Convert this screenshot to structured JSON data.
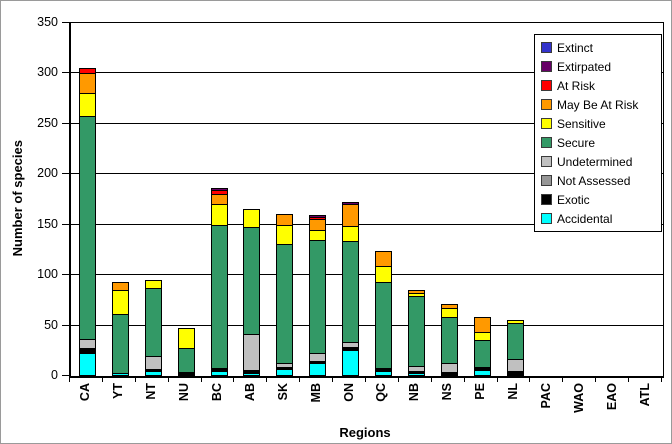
{
  "chart_data": {
    "type": "bar",
    "stacked": true,
    "title": "",
    "xlabel": "Regions",
    "ylabel": "Number of species",
    "ylim": [
      0,
      350
    ],
    "ytick_step": 50,
    "grid": true,
    "legend_position": "top-right",
    "categories": [
      "CA",
      "YT",
      "NT",
      "NU",
      "BC",
      "AB",
      "SK",
      "MB",
      "ON",
      "QC",
      "NB",
      "NS",
      "PE",
      "NL",
      "PAC",
      "WAO",
      "EAO",
      "ATL"
    ],
    "stack_order": "first series is top of stack",
    "series": [
      {
        "name": "Extinct",
        "color": "#3333CC",
        "values": [
          0,
          0,
          0,
          0,
          0,
          0,
          0,
          0,
          0,
          0,
          0,
          0,
          0,
          0,
          0,
          0,
          0,
          0
        ]
      },
      {
        "name": "Extirpated",
        "color": "#660066",
        "values": [
          0,
          0,
          0,
          0,
          2,
          0,
          0,
          2,
          2,
          0,
          0,
          0,
          0,
          0,
          0,
          0,
          0,
          0
        ]
      },
      {
        "name": "At Risk",
        "color": "#FF0000",
        "values": [
          5,
          0,
          0,
          0,
          4,
          0,
          0,
          2,
          0,
          0,
          0,
          0,
          0,
          0,
          0,
          0,
          0,
          0
        ]
      },
      {
        "name": "May Be At Risk",
        "color": "#FF9900",
        "values": [
          19,
          8,
          0,
          0,
          9,
          0,
          11,
          11,
          22,
          15,
          3,
          4,
          15,
          0,
          0,
          0,
          0,
          0
        ]
      },
      {
        "name": "Sensitive",
        "color": "#FFFF00",
        "values": [
          23,
          24,
          8,
          20,
          21,
          18,
          19,
          10,
          15,
          16,
          3,
          8,
          8,
          3,
          0,
          0,
          0,
          0
        ]
      },
      {
        "name": "Secure",
        "color": "#339966",
        "values": [
          221,
          58,
          67,
          24,
          142,
          106,
          118,
          112,
          100,
          85,
          69,
          46,
          27,
          36,
          0,
          0,
          0,
          0
        ]
      },
      {
        "name": "Undetermined",
        "color": "#C0C0C0",
        "values": [
          9,
          0,
          13,
          0,
          0,
          36,
          4,
          8,
          5,
          0,
          5,
          9,
          0,
          12,
          0,
          0,
          0,
          0
        ]
      },
      {
        "name": "Not Assessed",
        "color": "#969696",
        "values": [
          0,
          0,
          0,
          0,
          0,
          0,
          0,
          0,
          0,
          0,
          0,
          0,
          0,
          0,
          0,
          0,
          0,
          0
        ]
      },
      {
        "name": "Exotic",
        "color": "#000000",
        "values": [
          5,
          0,
          2,
          2,
          3,
          3,
          2,
          2,
          3,
          3,
          2,
          3,
          3,
          3,
          0,
          0,
          0,
          0
        ]
      },
      {
        "name": "Accidental",
        "color": "#00FFFF",
        "values": [
          22,
          2,
          4,
          1,
          4,
          2,
          6,
          12,
          25,
          4,
          2,
          0,
          5,
          1,
          0,
          0,
          0,
          0
        ]
      }
    ]
  }
}
